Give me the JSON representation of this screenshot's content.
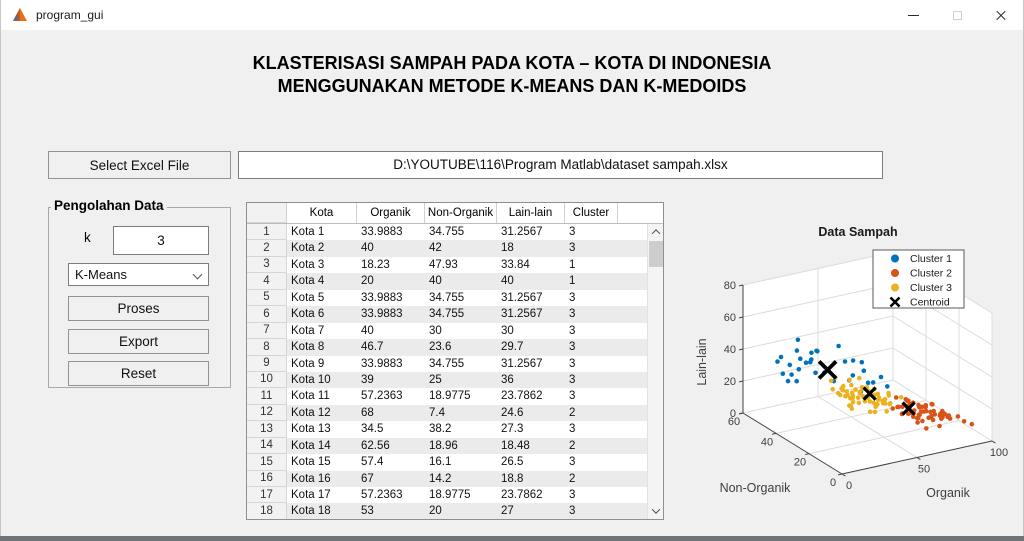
{
  "window": {
    "title": "program_gui"
  },
  "header": {
    "title_line1": "KLASTERISASI SAMPAH PADA KOTA – KOTA DI INDONESIA",
    "title_line2": "MENGGUNAKAN METODE K-MEANS DAN K-MEDOIDS"
  },
  "file_picker": {
    "button_label": "Select Excel File",
    "path": "D:\\YOUTUBE\\116\\Program Matlab\\dataset sampah.xlsx"
  },
  "panel": {
    "title": "Pengolahan Data",
    "k_label": "k",
    "k_value": "3",
    "method": "K-Means",
    "proses_label": "Proses",
    "export_label": "Export",
    "reset_label": "Reset"
  },
  "table": {
    "headers": [
      "Kota",
      "Organik",
      "Non-Organik",
      "Lain-lain",
      "Cluster"
    ],
    "rows": [
      [
        "Kota 1",
        "33.9883",
        "34.755",
        "31.2567",
        "3"
      ],
      [
        "Kota 2",
        "40",
        "42",
        "18",
        "3"
      ],
      [
        "Kota 3",
        "18.23",
        "47.93",
        "33.84",
        "1"
      ],
      [
        "Kota 4",
        "20",
        "40",
        "40",
        "1"
      ],
      [
        "Kota 5",
        "33.9883",
        "34.755",
        "31.2567",
        "3"
      ],
      [
        "Kota 6",
        "33.9883",
        "34.755",
        "31.2567",
        "3"
      ],
      [
        "Kota 7",
        "40",
        "30",
        "30",
        "3"
      ],
      [
        "Kota 8",
        "46.7",
        "23.6",
        "29.7",
        "3"
      ],
      [
        "Kota 9",
        "33.9883",
        "34.755",
        "31.2567",
        "3"
      ],
      [
        "Kota 10",
        "39",
        "25",
        "36",
        "3"
      ],
      [
        "Kota 11",
        "57.2363",
        "18.9775",
        "23.7862",
        "3"
      ],
      [
        "Kota 12",
        "68",
        "7.4",
        "24.6",
        "2"
      ],
      [
        "Kota 13",
        "34.5",
        "38.2",
        "27.3",
        "3"
      ],
      [
        "Kota 14",
        "62.56",
        "18.96",
        "18.48",
        "2"
      ],
      [
        "Kota 15",
        "57.4",
        "16.1",
        "26.5",
        "3"
      ],
      [
        "Kota 16",
        "67",
        "14.2",
        "18.8",
        "2"
      ],
      [
        "Kota 17",
        "57.2363",
        "18.9775",
        "23.7862",
        "3"
      ],
      [
        "Kota 18",
        "53",
        "20",
        "27",
        "3"
      ]
    ]
  },
  "chart_data": {
    "type": "scatter",
    "projection": "3d",
    "title": "Data Sampah",
    "xlabel": "Organik",
    "ylabel": "Non-Organik",
    "zlabel": "Lain-lain",
    "xlim": [
      0,
      100
    ],
    "ylim": [
      0,
      60
    ],
    "zlim": [
      0,
      80
    ],
    "xticks": [
      0,
      50,
      100
    ],
    "yticks": [
      0,
      20,
      40,
      60
    ],
    "zticks": [
      0,
      20,
      40,
      60,
      80
    ],
    "grid": true,
    "legend_position": "upper-right",
    "legend": [
      {
        "label": "Cluster 1",
        "color": "#0072BD",
        "marker": "dot"
      },
      {
        "label": "Cluster 2",
        "color": "#D95319",
        "marker": "dot"
      },
      {
        "label": "Cluster 3",
        "color": "#EDB120",
        "marker": "dot"
      },
      {
        "label": "Centroid",
        "color": "#000000",
        "marker": "x"
      }
    ],
    "series": [
      {
        "name": "Cluster 1",
        "color": "#0072BD",
        "points": [
          [
            18,
            48,
            34
          ],
          [
            20,
            40,
            40
          ],
          [
            10,
            45,
            32
          ],
          [
            14,
            38,
            45
          ],
          [
            25,
            42,
            38
          ],
          [
            8,
            40,
            31
          ],
          [
            12,
            50,
            36
          ],
          [
            22,
            35,
            50
          ],
          [
            28,
            44,
            42
          ],
          [
            16,
            42,
            28
          ],
          [
            30,
            38,
            33
          ],
          [
            24,
            48,
            30
          ],
          [
            6,
            36,
            38
          ],
          [
            19,
            44,
            52
          ],
          [
            27,
            40,
            46
          ],
          [
            33,
            35,
            29
          ],
          [
            11,
            47,
            41
          ],
          [
            23,
            37,
            35
          ],
          [
            15,
            41,
            48
          ],
          [
            29,
            45,
            37
          ],
          [
            35,
            30,
            44
          ],
          [
            38,
            28,
            36
          ],
          [
            42,
            25,
            40
          ],
          [
            45,
            22,
            34
          ],
          [
            40,
            32,
            30
          ],
          [
            36,
            26,
            47
          ],
          [
            48,
            20,
            38
          ],
          [
            44,
            28,
            43
          ],
          [
            50,
            18,
            33
          ],
          [
            34,
            33,
            52
          ],
          [
            39,
            24,
            28
          ],
          [
            46,
            26,
            31
          ]
        ]
      },
      {
        "name": "Cluster 3",
        "color": "#EDB120",
        "points": [
          [
            34,
            35,
            31
          ],
          [
            40,
            42,
            18
          ],
          [
            39,
            25,
            36
          ],
          [
            34.5,
            38,
            27
          ],
          [
            53,
            20,
            27
          ],
          [
            57,
            16,
            26
          ],
          [
            45,
            30,
            22
          ],
          [
            48,
            28,
            20
          ],
          [
            36,
            33,
            25
          ],
          [
            42,
            26,
            29
          ],
          [
            50,
            24,
            18
          ],
          [
            38,
            30,
            32
          ],
          [
            44,
            35,
            16
          ],
          [
            33,
            28,
            24
          ],
          [
            46,
            22,
            26
          ],
          [
            52,
            18,
            22
          ],
          [
            37,
            36,
            20
          ],
          [
            41,
            32,
            14
          ],
          [
            49,
            27,
            24
          ],
          [
            55,
            21,
            19
          ],
          [
            35,
            31,
            28
          ],
          [
            43,
            24,
            30
          ],
          [
            47,
            33,
            17
          ],
          [
            39,
            29,
            21
          ],
          [
            51,
            26,
            15
          ],
          [
            45,
            19,
            25
          ],
          [
            38,
            34,
            23
          ],
          [
            42,
            28,
            18
          ],
          [
            54,
            23,
            21
          ],
          [
            36,
            27,
            31
          ],
          [
            48,
            31,
            19
          ],
          [
            40,
            22,
            26
          ],
          [
            44,
            29,
            24
          ],
          [
            50,
            17,
            28
          ],
          [
            34,
            32,
            22
          ],
          [
            46,
            25,
            20
          ],
          [
            52,
            28,
            16
          ],
          [
            37,
            23,
            29
          ],
          [
            43,
            33,
            21
          ],
          [
            49,
            20,
            23
          ],
          [
            55,
            25,
            17
          ],
          [
            35,
            29,
            26
          ],
          [
            41,
            35,
            18
          ],
          [
            47,
            21,
            27
          ],
          [
            39,
            31,
            15
          ],
          [
            51,
            24,
            22
          ],
          [
            45,
            27,
            19
          ],
          [
            38,
            18,
            30
          ],
          [
            42,
            30,
            25
          ],
          [
            54,
            22,
            14
          ],
          [
            36,
            26,
            21
          ],
          [
            48,
            24,
            28
          ],
          [
            40,
            33,
            20
          ],
          [
            44,
            20,
            17
          ],
          [
            50,
            29,
            23
          ],
          [
            34,
            25,
            18
          ],
          [
            46,
            28,
            26
          ],
          [
            52,
            21,
            20
          ],
          [
            37,
            27,
            24
          ],
          [
            43,
            22,
            16
          ]
        ]
      },
      {
        "name": "Cluster 2",
        "color": "#D95319",
        "points": [
          [
            68,
            7,
            25
          ],
          [
            62,
            19,
            18
          ],
          [
            67,
            14,
            19
          ],
          [
            57,
            19,
            24
          ],
          [
            60,
            15,
            20
          ],
          [
            65,
            12,
            16
          ],
          [
            70,
            10,
            18
          ],
          [
            75,
            8,
            14
          ],
          [
            58,
            22,
            15
          ],
          [
            63,
            17,
            22
          ],
          [
            72,
            13,
            12
          ],
          [
            66,
            9,
            20
          ],
          [
            59,
            20,
            17
          ],
          [
            74,
            11,
            15
          ],
          [
            61,
            16,
            23
          ],
          [
            69,
            14,
            10
          ],
          [
            77,
            6,
            16
          ],
          [
            64,
            18,
            13
          ],
          [
            71,
            9,
            19
          ],
          [
            58,
            13,
            21
          ],
          [
            76,
            15,
            11
          ],
          [
            62,
            10,
            24
          ],
          [
            67,
            20,
            14
          ],
          [
            73,
            7,
            17
          ],
          [
            60,
            12,
            18
          ],
          [
            78,
            10,
            13
          ],
          [
            65,
            16,
            21
          ],
          [
            70,
            18,
            9
          ],
          [
            80,
            8,
            15
          ],
          [
            63,
            14,
            16
          ],
          [
            68,
            11,
            22
          ],
          [
            75,
            13,
            10
          ],
          [
            59,
            17,
            19
          ],
          [
            72,
            16,
            14
          ],
          [
            66,
            6,
            18
          ],
          [
            82,
            9,
            12
          ],
          [
            61,
            21,
            16
          ],
          [
            69,
            12,
            20
          ],
          [
            76,
            10,
            8
          ],
          [
            64,
            15,
            13
          ],
          [
            85,
            7,
            14
          ],
          [
            58,
            9,
            22
          ],
          [
            71,
            18,
            11
          ],
          [
            67,
            13,
            17
          ],
          [
            74,
            5,
            19
          ],
          [
            62,
            20,
            12
          ],
          [
            79,
            11,
            16
          ],
          [
            65,
            8,
            10
          ],
          [
            70,
            15,
            18
          ],
          [
            88,
            6,
            11
          ],
          [
            60,
            18,
            14
          ],
          [
            73,
            12,
            21
          ],
          [
            68,
            16,
            8
          ],
          [
            77,
            9,
            17
          ],
          [
            63,
            11,
            15
          ],
          [
            81,
            14,
            12
          ],
          [
            59,
            15,
            25
          ],
          [
            66,
            19,
            18
          ],
          [
            92,
            5,
            9
          ]
        ]
      }
    ],
    "centroids": [
      [
        30,
        36,
        36
      ],
      [
        47,
        26,
        24
      ],
      [
        62,
        16,
        18
      ]
    ],
    "centroid_color": "#000000",
    "axis_color": "#404040",
    "grid_color": "#dcdcdc"
  }
}
